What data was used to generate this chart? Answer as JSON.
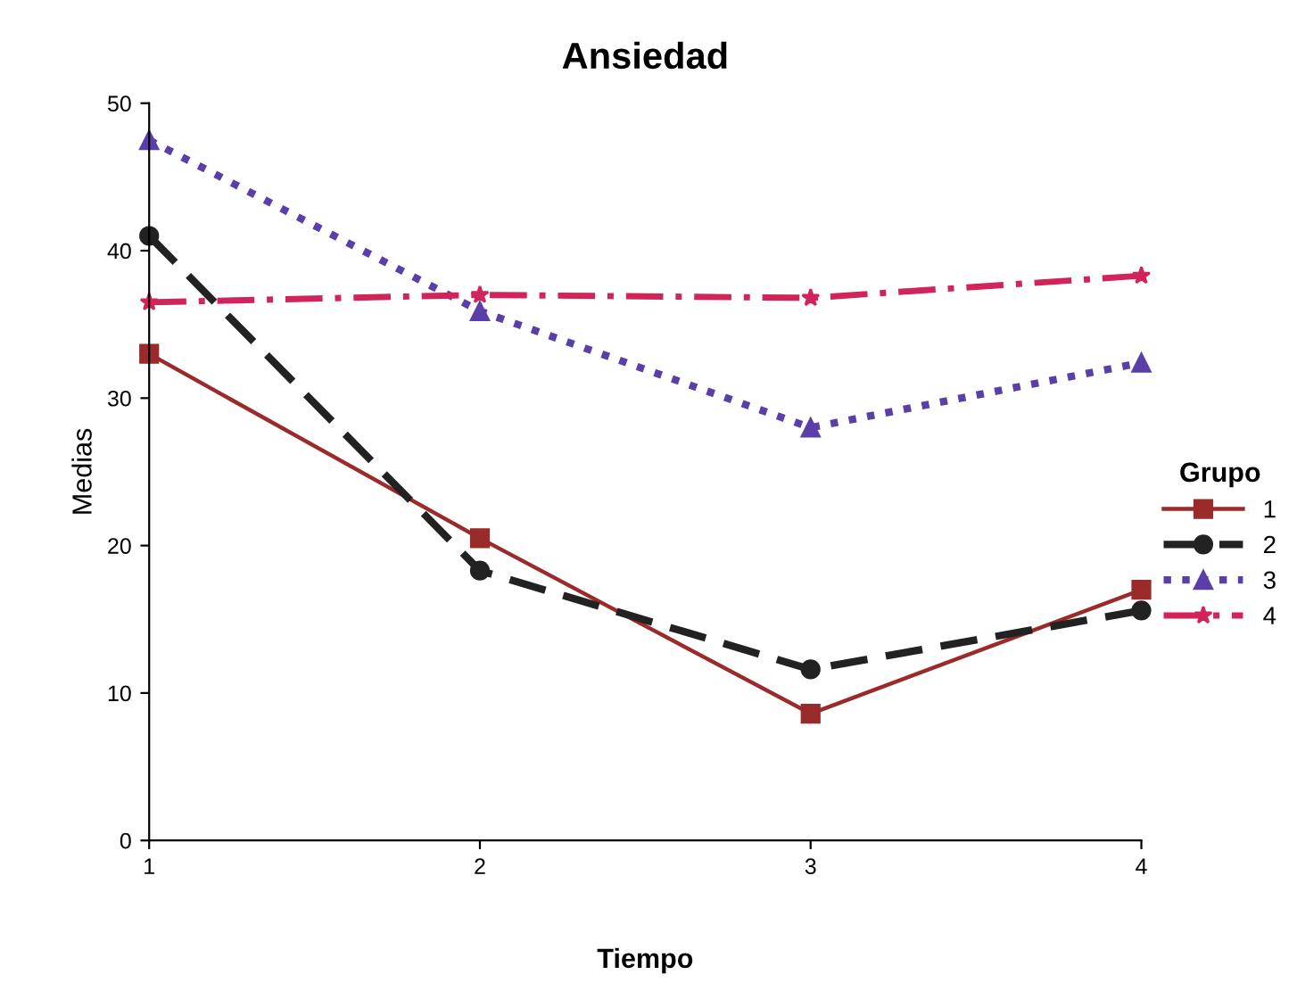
{
  "chart_data": {
    "type": "line",
    "title": "Ansiedad",
    "xlabel": "Tiempo",
    "ylabel": "Medias",
    "legend_title": "Grupo",
    "legend": "right",
    "grid": false,
    "x": [
      1,
      2,
      3,
      4
    ],
    "xlim": [
      1,
      4
    ],
    "xticks": [
      1,
      2,
      3,
      4
    ],
    "ylim": [
      0,
      50
    ],
    "yticks": [
      0,
      10,
      20,
      30,
      40,
      50
    ],
    "series": [
      {
        "name": "1",
        "color": "#9b2a2a",
        "values": [
          33,
          20.5,
          8.6,
          17
        ],
        "marker": "square",
        "line_style": "solid"
      },
      {
        "name": "2",
        "color": "#222222",
        "values": [
          41,
          18.3,
          11.6,
          15.6
        ],
        "marker": "circle",
        "line_style": "dashed"
      },
      {
        "name": "3",
        "color": "#5b3fa8",
        "values": [
          47.5,
          35.9,
          28,
          32.4
        ],
        "marker": "triangle",
        "line_style": "dotted"
      },
      {
        "name": "4",
        "color": "#d0245a",
        "values": [
          36.5,
          37,
          36.8,
          38.3
        ],
        "marker": "star",
        "line_style": "dashdot"
      }
    ]
  }
}
